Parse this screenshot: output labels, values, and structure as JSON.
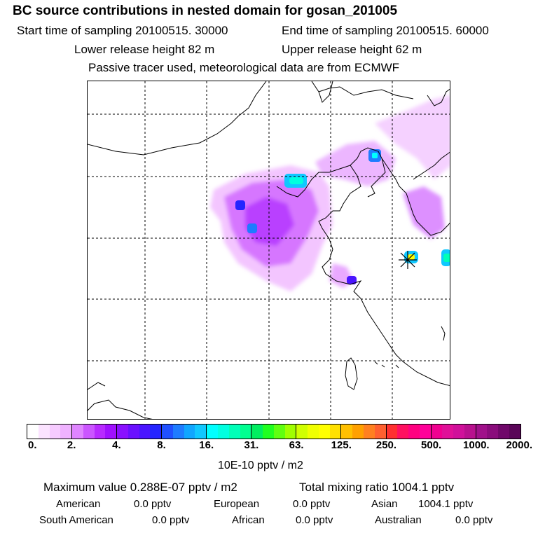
{
  "header": {
    "title": "BC  source contributions in nested domain for gosan_201005",
    "start_time": "Start time of sampling 20100515. 30000",
    "end_time": "End time of sampling 20100515. 60000",
    "lower_height": "Lower release height   82 m",
    "upper_height": "Upper release height   62 m",
    "tracer_note": "Passive tracer used, meteorological data are from ECMWF"
  },
  "colorbar": {
    "ticks": [
      "0.",
      "2.",
      "4.",
      "8.",
      "16.",
      "31.",
      "63.",
      "125.",
      "250.",
      "500.",
      "1000.",
      "2000."
    ],
    "unit": "10E-10 pptv / m2",
    "colors": [
      "#ffffff",
      "#fbe3ff",
      "#f6cbff",
      "#efb2ff",
      "#df85ff",
      "#cb55ff",
      "#b82aff",
      "#a010ff",
      "#8a10ff",
      "#6a10ff",
      "#4a14ff",
      "#2424ff",
      "#2050ff",
      "#1e7cff",
      "#10a6ff",
      "#10c8ff",
      "#00ffff",
      "#00ffe0",
      "#00ffb8",
      "#00ff90",
      "#00ee60",
      "#20ff20",
      "#60ff10",
      "#a0ff00",
      "#d0ff00",
      "#f0ff00",
      "#ffff00",
      "#ffe000",
      "#ffc000",
      "#ffa000",
      "#ff8020",
      "#ff6030",
      "#ff3030",
      "#ff1060",
      "#ff0080",
      "#ff0099",
      "#f00090",
      "#e01098",
      "#d0109a",
      "#b8108e",
      "#a0108a",
      "#8a0c7c",
      "#70086a",
      "#5a0558"
    ]
  },
  "footer": {
    "max_value": "Maximum value  0.288E-07 pptv / m2",
    "total_mixing": "Total mixing ratio     1004.1 pptv",
    "regions_row1": [
      {
        "name": "American",
        "value": "0.0 pptv"
      },
      {
        "name": "European",
        "value": "0.0 pptv"
      },
      {
        "name": "Asian",
        "value": "1004.1 pptv"
      }
    ],
    "regions_row2": [
      {
        "name": "South American",
        "value": "0.0 pptv"
      },
      {
        "name": "African",
        "value": "0.0 pptv"
      },
      {
        "name": "Australian",
        "value": "0.0 pptv"
      }
    ]
  }
}
